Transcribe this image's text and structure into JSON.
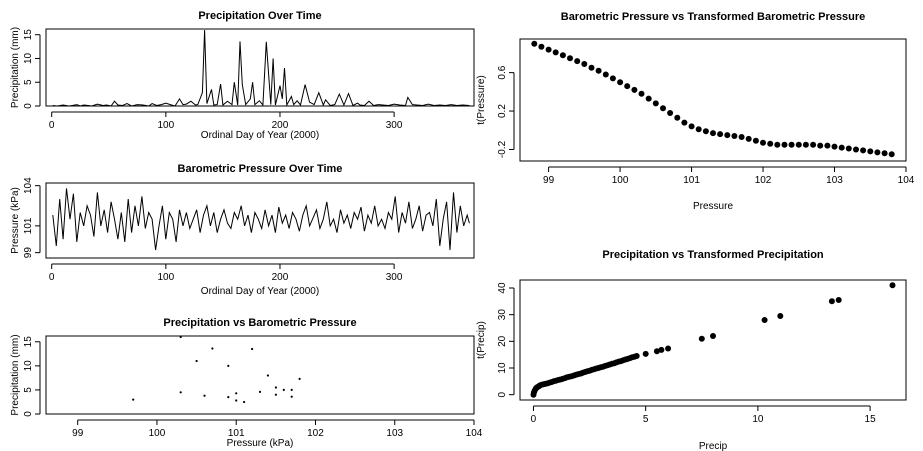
{
  "colors": {
    "ink": "#000000",
    "background": "#ffffff"
  },
  "chart_data": [
    {
      "id": "p1",
      "type": "line",
      "title": "Precipitation Over Time",
      "xlabel": "Ordinal Day of Year (2000)",
      "ylabel": "Precipitation (mm)",
      "xlim": [
        -5,
        370
      ],
      "ylim": [
        0,
        16.2
      ],
      "xticks": [
        0,
        100,
        200,
        300
      ],
      "yticks": [
        0,
        5,
        10,
        15
      ],
      "x": [
        1,
        5,
        10,
        15,
        18,
        22,
        25,
        28,
        32,
        35,
        40,
        45,
        48,
        52,
        55,
        58,
        62,
        66,
        70,
        75,
        80,
        85,
        88,
        92,
        96,
        100,
        105,
        108,
        112,
        115,
        118,
        122,
        126,
        128,
        132,
        134,
        136,
        140,
        142,
        145,
        148,
        150,
        154,
        158,
        160,
        163,
        165,
        167,
        170,
        174,
        176,
        178,
        182,
        185,
        188,
        192,
        194,
        196,
        200,
        202,
        204,
        206,
        210,
        212,
        215,
        218,
        222,
        226,
        230,
        234,
        238,
        240,
        244,
        248,
        252,
        256,
        260,
        264,
        268,
        270,
        274,
        278,
        282,
        286,
        290,
        295,
        300,
        305,
        310,
        312,
        316,
        320,
        325,
        330,
        335,
        340,
        345,
        350,
        355,
        360,
        366
      ],
      "values": [
        0.1,
        0,
        0.2,
        0,
        0.1,
        0.3,
        0,
        0.2,
        0.1,
        0,
        0.4,
        0.1,
        0.2,
        0,
        1.0,
        0.2,
        0.1,
        0.5,
        0,
        0.3,
        0.2,
        0,
        0.5,
        0.1,
        0.3,
        0.6,
        0.2,
        0,
        1.5,
        0.3,
        0.4,
        1.0,
        0.2,
        0.3,
        2.8,
        16.0,
        0.5,
        3.5,
        0.2,
        0.3,
        4.6,
        0.2,
        1.0,
        0.3,
        5.0,
        0.2,
        13.6,
        4.5,
        0.3,
        1.5,
        5.0,
        0.3,
        1.1,
        0.2,
        13.5,
        0.3,
        10.0,
        0.2,
        4.3,
        1.5,
        8.0,
        0.2,
        2.0,
        0.3,
        1.1,
        0.2,
        4.5,
        0.8,
        0.3,
        2.8,
        0.2,
        1.3,
        0.1,
        0.3,
        2.5,
        0.2,
        2.6,
        0.1,
        0.6,
        0.2,
        0.1,
        1.0,
        0.1,
        0.3,
        0.2,
        0.1,
        0.4,
        0.2,
        0.1,
        1.8,
        0.3,
        0.2,
        0.1,
        0.4,
        0.1,
        0.2,
        0.1,
        0.3,
        0.1,
        0.2,
        0.1
      ]
    },
    {
      "id": "p2",
      "type": "line",
      "title": "Barometric Pressure Over Time",
      "xlabel": "Ordinal Day of Year (2000)",
      "ylabel": "Pressure (kPa)",
      "xlim": [
        -5,
        370
      ],
      "ylim": [
        98.6,
        104.2
      ],
      "xticks": [
        0,
        100,
        200,
        300
      ],
      "yticks": [
        99,
        101,
        104
      ],
      "x": [
        1,
        4,
        7,
        10,
        13,
        16,
        19,
        22,
        25,
        28,
        31,
        34,
        37,
        40,
        43,
        46,
        49,
        52,
        55,
        58,
        61,
        64,
        67,
        70,
        73,
        76,
        79,
        82,
        85,
        88,
        91,
        94,
        97,
        100,
        103,
        106,
        109,
        112,
        115,
        118,
        121,
        124,
        127,
        130,
        133,
        136,
        139,
        142,
        145,
        148,
        151,
        154,
        157,
        160,
        163,
        166,
        169,
        172,
        175,
        178,
        181,
        184,
        187,
        190,
        193,
        196,
        199,
        202,
        205,
        208,
        211,
        214,
        217,
        220,
        223,
        226,
        229,
        232,
        235,
        238,
        241,
        244,
        247,
        250,
        253,
        256,
        259,
        262,
        265,
        268,
        271,
        274,
        277,
        280,
        283,
        286,
        289,
        292,
        295,
        298,
        301,
        304,
        307,
        310,
        313,
        316,
        319,
        322,
        325,
        328,
        331,
        334,
        337,
        340,
        343,
        346,
        349,
        352,
        355,
        358,
        361,
        364,
        366
      ],
      "values": [
        101.8,
        99.5,
        103.0,
        100.0,
        103.8,
        101.5,
        103.4,
        99.8,
        102.0,
        101.0,
        102.5,
        101.8,
        100.2,
        103.5,
        101.0,
        102.2,
        100.5,
        102.8,
        101.5,
        100.0,
        102.0,
        99.8,
        103.0,
        100.5,
        102.5,
        101.0,
        103.2,
        100.8,
        102.0,
        101.5,
        99.2,
        101.0,
        102.5,
        100.0,
        102.0,
        101.5,
        99.8,
        102.2,
        101.0,
        102.0,
        100.8,
        101.5,
        102.2,
        100.5,
        101.8,
        102.5,
        101.0,
        102.0,
        100.5,
        101.5,
        102.2,
        101.2,
        100.8,
        102.0,
        101.5,
        102.5,
        101.0,
        101.8,
        100.5,
        102.0,
        101.5,
        100.8,
        102.2,
        101.0,
        101.8,
        100.5,
        102.4,
        101.2,
        101.8,
        100.8,
        102.0,
        101.5,
        100.6,
        101.8,
        102.5,
        101.0,
        101.6,
        102.2,
        100.8,
        101.5,
        102.8,
        101.0,
        101.5,
        100.5,
        102.2,
        101.2,
        101.8,
        100.8,
        102.0,
        101.5,
        102.4,
        100.6,
        101.8,
        101.2,
        102.5,
        101.0,
        101.5,
        100.8,
        102.0,
        101.5,
        103.2,
        100.5,
        102.0,
        101.2,
        102.8,
        100.8,
        101.5,
        102.5,
        100.6,
        101.8,
        102.0,
        101.0,
        103.0,
        99.5,
        101.5,
        102.8,
        99.2,
        103.5,
        100.5,
        102.5,
        101.0,
        101.8,
        101.2
      ]
    },
    {
      "id": "p3",
      "type": "scatter",
      "title": "Precipitation vs Barometric Pressure",
      "xlabel": "Pressure (kPa)",
      "ylabel": "Precipitation (mm)",
      "xlim": [
        98.6,
        104.0
      ],
      "ylim": [
        0,
        16.2
      ],
      "xticks": [
        99,
        100,
        101,
        102,
        103,
        104
      ],
      "yticks": [
        0,
        5,
        10,
        15
      ],
      "x": [
        100.3,
        100.5,
        100.7,
        100.9,
        101.0,
        101.2,
        101.4,
        101.6,
        101.5,
        101.8,
        101.7,
        99.7,
        100.3,
        100.6,
        100.9,
        101.0,
        101.3,
        101.5,
        101.7,
        101.1
      ],
      "y": [
        16.0,
        11.0,
        13.6,
        10.0,
        4.3,
        13.5,
        8.0,
        5.0,
        5.5,
        7.3,
        5.0,
        3.0,
        4.5,
        3.8,
        3.5,
        2.8,
        4.6,
        4.0,
        3.6,
        2.5
      ]
    },
    {
      "id": "p4",
      "type": "scatter",
      "title": "Barometric Pressure vs Transformed Barometric Pressure",
      "xlabel": "Pressure",
      "ylabel": "t(Pressure)",
      "xlim": [
        98.6,
        104.0
      ],
      "ylim": [
        -0.32,
        0.95
      ],
      "xticks": [
        99,
        100,
        101,
        102,
        103,
        104
      ],
      "yticks": [
        -0.2,
        0.2,
        0.6
      ],
      "x": [
        98.8,
        98.9,
        99.0,
        99.1,
        99.2,
        99.3,
        99.4,
        99.5,
        99.6,
        99.7,
        99.8,
        99.9,
        100.0,
        100.1,
        100.2,
        100.3,
        100.4,
        100.5,
        100.6,
        100.7,
        100.8,
        100.9,
        101.0,
        101.1,
        101.2,
        101.3,
        101.4,
        101.5,
        101.6,
        101.7,
        101.8,
        101.9,
        102.0,
        102.1,
        102.2,
        102.3,
        102.4,
        102.5,
        102.6,
        102.7,
        102.8,
        102.9,
        103.0,
        103.1,
        103.2,
        103.3,
        103.4,
        103.5,
        103.6,
        103.7,
        103.8
      ],
      "y": [
        0.9,
        0.87,
        0.84,
        0.81,
        0.78,
        0.75,
        0.72,
        0.69,
        0.65,
        0.62,
        0.58,
        0.54,
        0.5,
        0.46,
        0.42,
        0.38,
        0.33,
        0.28,
        0.23,
        0.18,
        0.13,
        0.08,
        0.04,
        0.01,
        -0.01,
        -0.03,
        -0.04,
        -0.05,
        -0.06,
        -0.07,
        -0.09,
        -0.11,
        -0.13,
        -0.14,
        -0.15,
        -0.15,
        -0.15,
        -0.15,
        -0.15,
        -0.15,
        -0.16,
        -0.16,
        -0.17,
        -0.18,
        -0.19,
        -0.2,
        -0.21,
        -0.22,
        -0.23,
        -0.24,
        -0.25
      ]
    },
    {
      "id": "p5",
      "type": "scatter",
      "title": "Precipitation vs Transformed Precipitation",
      "xlabel": "Precip",
      "ylabel": "t(Precip)",
      "xlim": [
        -0.6,
        16.6
      ],
      "ylim": [
        -2,
        43
      ],
      "xticks": [
        0,
        5,
        10,
        15
      ],
      "yticks": [
        0,
        10,
        20,
        30,
        40
      ],
      "x": [
        0,
        0.02,
        0.05,
        0.1,
        0.15,
        0.2,
        0.25,
        0.3,
        0.4,
        0.5,
        0.6,
        0.7,
        0.8,
        0.9,
        1.0,
        1.1,
        1.2,
        1.3,
        1.4,
        1.5,
        1.6,
        1.7,
        1.8,
        1.9,
        2.0,
        2.1,
        2.2,
        2.3,
        2.4,
        2.5,
        2.6,
        2.7,
        2.8,
        2.9,
        3.0,
        3.1,
        3.2,
        3.3,
        3.4,
        3.5,
        3.6,
        3.7,
        3.8,
        3.9,
        4.0,
        4.1,
        4.2,
        4.3,
        4.4,
        4.5,
        4.6,
        5.0,
        5.5,
        5.7,
        6.0,
        7.5,
        8.0,
        10.3,
        11.0,
        13.3,
        13.6,
        16.0
      ],
      "y": [
        0,
        0.8,
        1.5,
        2.2,
        2.7,
        3.0,
        3.2,
        3.5,
        3.8,
        4.0,
        4.2,
        4.5,
        4.7,
        5.0,
        5.2,
        5.5,
        5.7,
        5.9,
        6.2,
        6.5,
        6.7,
        6.9,
        7.2,
        7.5,
        7.7,
        7.9,
        8.2,
        8.5,
        8.8,
        9.0,
        9.3,
        9.5,
        9.8,
        10.0,
        10.3,
        10.5,
        10.8,
        11.0,
        11.3,
        11.6,
        11.8,
        12.1,
        12.4,
        12.6,
        12.9,
        13.2,
        13.4,
        13.7,
        14.0,
        14.2,
        14.5,
        15.3,
        16.3,
        16.8,
        17.3,
        21.0,
        22.0,
        28.0,
        29.5,
        35.0,
        35.5,
        41.0
      ]
    }
  ]
}
